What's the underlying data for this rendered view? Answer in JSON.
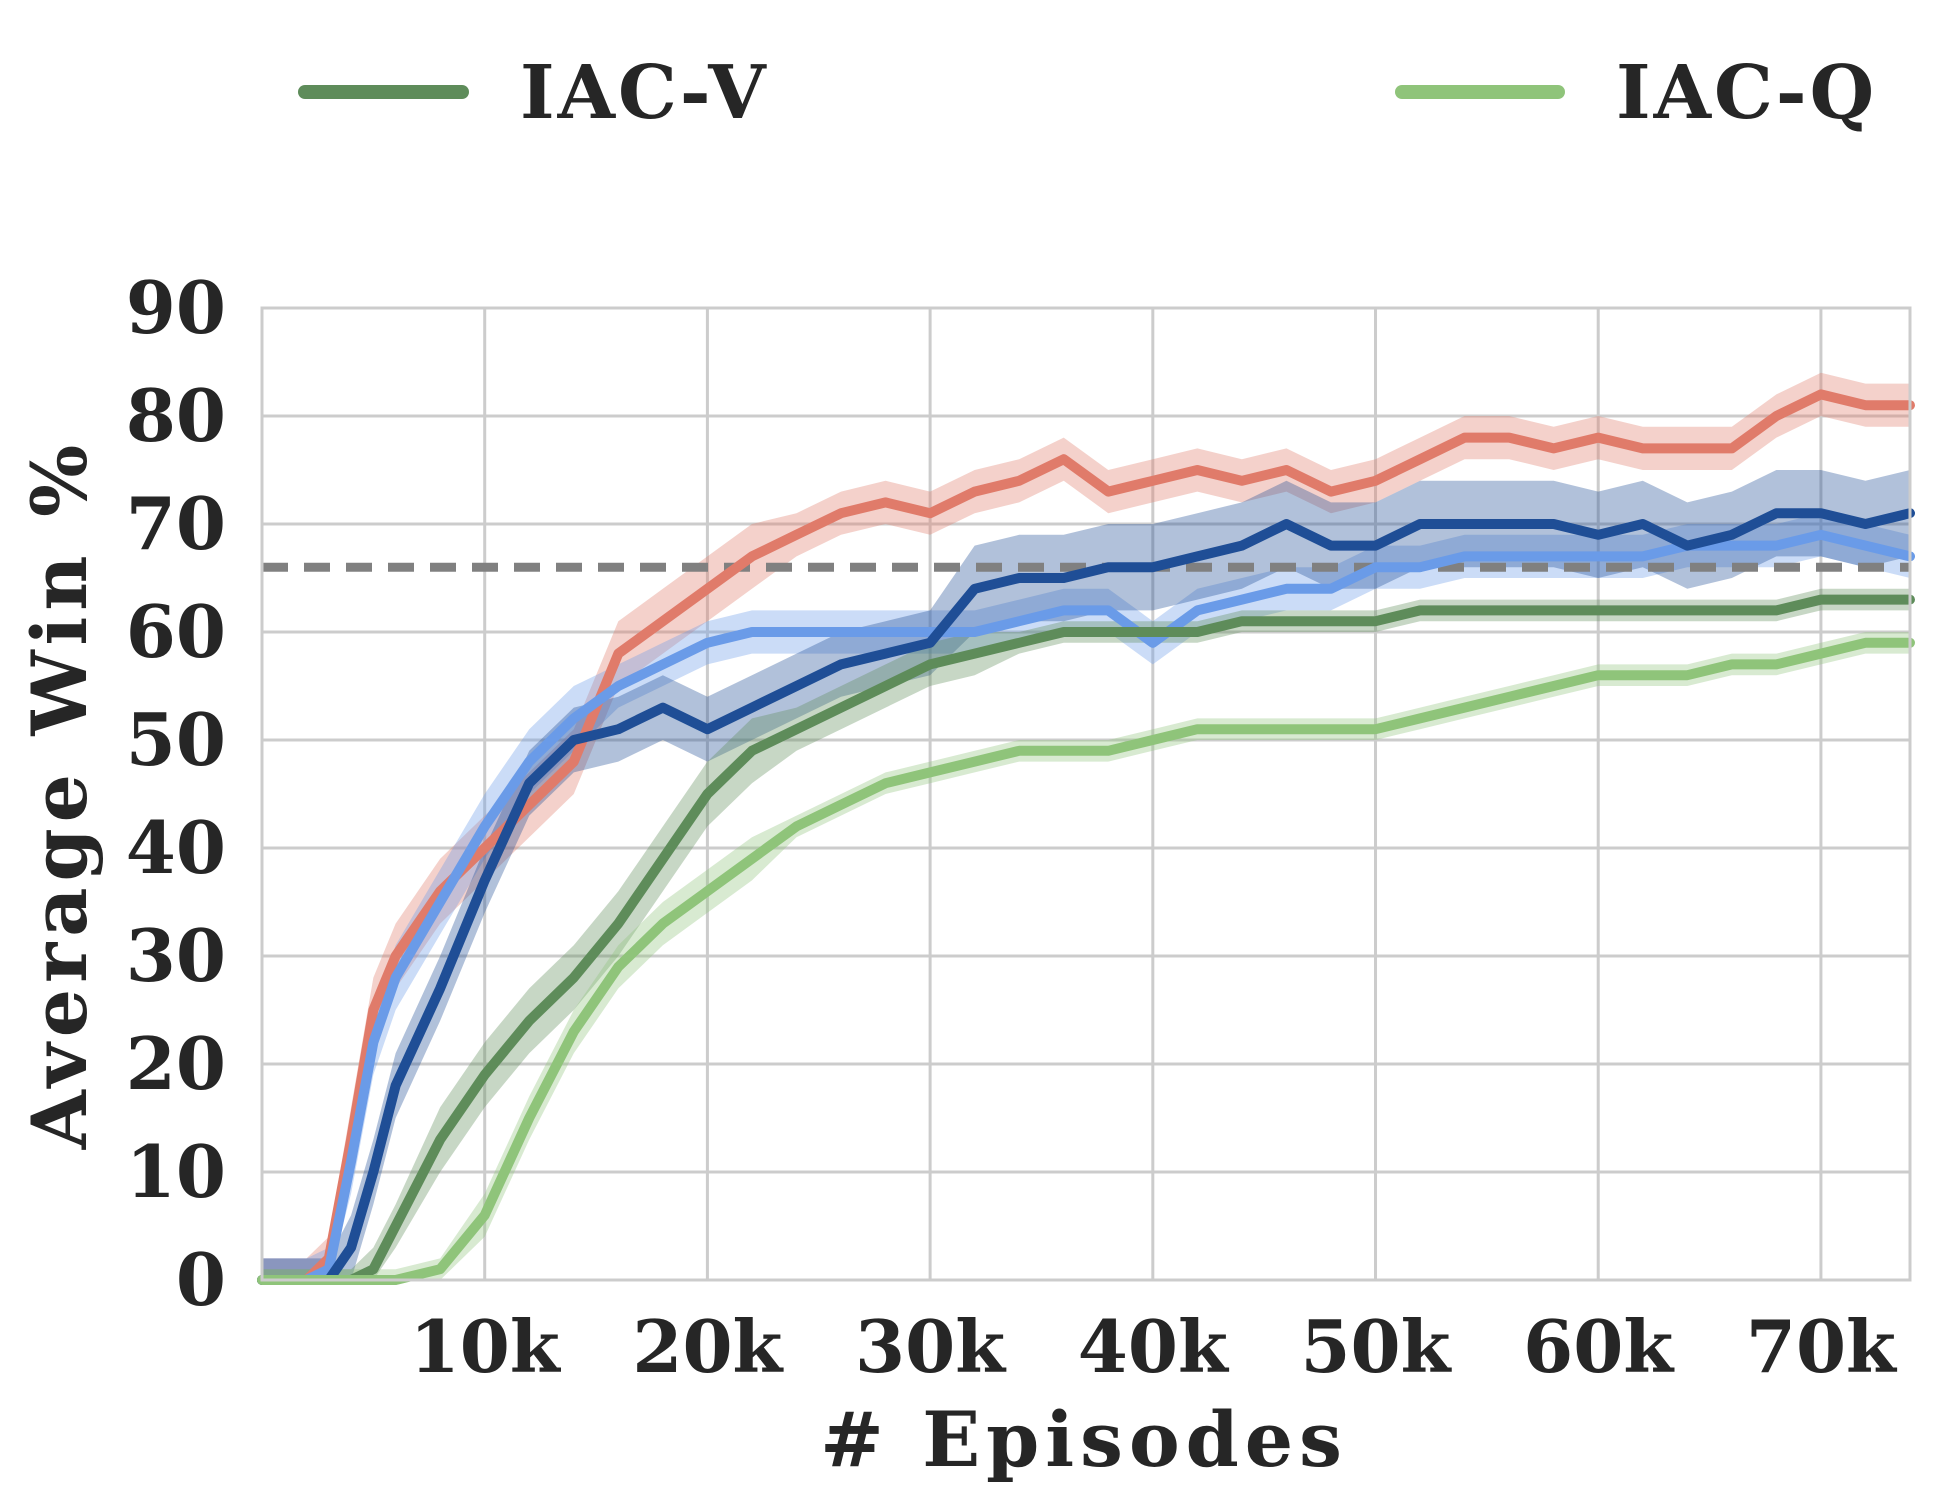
{
  "chart_data": {
    "type": "line",
    "title": "",
    "xlabel": "# Episodes",
    "ylabel": "Average Win %",
    "xlim": [
      0,
      74000
    ],
    "ylim": [
      0,
      90
    ],
    "grid": true,
    "legend_position": "top",
    "x_ticks": [
      {
        "value": 10000,
        "label": "10k"
      },
      {
        "value": 20000,
        "label": "20k"
      },
      {
        "value": 30000,
        "label": "30k"
      },
      {
        "value": 40000,
        "label": "40k"
      },
      {
        "value": 50000,
        "label": "50k"
      },
      {
        "value": 60000,
        "label": "60k"
      },
      {
        "value": 70000,
        "label": "70k"
      }
    ],
    "y_ticks": [
      {
        "value": 0,
        "label": "0"
      },
      {
        "value": 10,
        "label": "10"
      },
      {
        "value": 20,
        "label": "20"
      },
      {
        "value": 30,
        "label": "30"
      },
      {
        "value": 40,
        "label": "40"
      },
      {
        "value": 50,
        "label": "50"
      },
      {
        "value": 60,
        "label": "60"
      },
      {
        "value": 70,
        "label": "70"
      },
      {
        "value": 80,
        "label": "80"
      },
      {
        "value": 90,
        "label": "90"
      }
    ],
    "reference_line": {
      "y": 66,
      "color": "#808080",
      "style": "dashed"
    },
    "x": [
      0,
      2000,
      3000,
      4000,
      5000,
      6000,
      8000,
      10000,
      12000,
      14000,
      16000,
      18000,
      20000,
      22000,
      24000,
      26000,
      28000,
      30000,
      32000,
      34000,
      36000,
      38000,
      40000,
      42000,
      44000,
      46000,
      48000,
      50000,
      52000,
      54000,
      56000,
      58000,
      60000,
      62000,
      64000,
      66000,
      68000,
      70000,
      72000,
      74000
    ],
    "series": [
      {
        "name": "",
        "color": "#e07b6a",
        "values": [
          0,
          0,
          2,
          13,
          25,
          30,
          36,
          40,
          44,
          48,
          58,
          61,
          64,
          67,
          69,
          71,
          72,
          71,
          73,
          74,
          76,
          73,
          74,
          75,
          74,
          75,
          73,
          74,
          76,
          78,
          78,
          77,
          78,
          77,
          77,
          77,
          80,
          82,
          81,
          81
        ],
        "band": [
          2,
          2,
          2,
          3,
          3,
          3,
          3,
          3,
          3,
          3,
          3,
          3,
          3,
          3,
          2,
          2,
          2,
          2,
          2,
          2,
          2,
          2,
          2,
          2,
          2,
          2,
          2,
          2,
          2,
          2,
          2,
          2,
          2,
          2,
          2,
          2,
          2,
          2,
          2,
          2
        ]
      },
      {
        "name": "",
        "color": "#6a9be8",
        "values": [
          0,
          0,
          1,
          11,
          22,
          28,
          35,
          42,
          48,
          52,
          55,
          57,
          59,
          60,
          60,
          60,
          60,
          60,
          60,
          61,
          62,
          62,
          59,
          62,
          63,
          64,
          64,
          66,
          66,
          67,
          67,
          67,
          67,
          67,
          68,
          68,
          68,
          69,
          68,
          67
        ],
        "band": [
          2,
          2,
          2,
          3,
          3,
          3,
          3,
          3,
          3,
          3,
          2,
          2,
          2,
          2,
          2,
          2,
          2,
          2,
          2,
          2,
          2,
          2,
          2,
          2,
          2,
          2,
          2,
          2,
          2,
          2,
          2,
          2,
          2,
          2,
          2,
          2,
          2,
          2,
          2,
          2
        ]
      },
      {
        "name": "",
        "color": "#1f4e96",
        "values": [
          0,
          0,
          0,
          3,
          10,
          18,
          27,
          37,
          46,
          50,
          51,
          53,
          51,
          53,
          55,
          57,
          58,
          59,
          64,
          65,
          65,
          66,
          66,
          67,
          68,
          70,
          68,
          68,
          70,
          70,
          70,
          70,
          69,
          70,
          68,
          69,
          71,
          71,
          70,
          71
        ],
        "band": [
          2,
          2,
          2,
          3,
          3,
          3,
          3,
          3,
          3,
          3,
          3,
          3,
          3,
          3,
          3,
          3,
          3,
          3,
          4,
          4,
          4,
          4,
          4,
          4,
          4,
          4,
          4,
          4,
          4,
          4,
          4,
          4,
          4,
          4,
          4,
          4,
          4,
          4,
          4,
          4
        ]
      },
      {
        "name": "IAC-V",
        "color": "#5e8c5a",
        "values": [
          0,
          0,
          0,
          0,
          1,
          5,
          13,
          19,
          24,
          28,
          33,
          39,
          45,
          49,
          51,
          53,
          55,
          57,
          58,
          59,
          60,
          60,
          60,
          60,
          61,
          61,
          61,
          61,
          62,
          62,
          62,
          62,
          62,
          62,
          62,
          62,
          62,
          63,
          63,
          63
        ],
        "band": [
          1,
          1,
          1,
          1,
          2,
          2,
          3,
          3,
          3,
          3,
          3,
          3,
          3,
          3,
          2,
          2,
          2,
          2,
          2,
          1,
          1,
          1,
          1,
          1,
          1,
          1,
          1,
          1,
          1,
          1,
          1,
          1,
          1,
          1,
          1,
          1,
          1,
          1,
          1,
          1
        ]
      },
      {
        "name": "IAC-Q",
        "color": "#8fc47a",
        "values": [
          0,
          0,
          0,
          0,
          0,
          0,
          1,
          6,
          15,
          23,
          29,
          33,
          36,
          39,
          42,
          44,
          46,
          47,
          48,
          49,
          49,
          49,
          50,
          51,
          51,
          51,
          51,
          51,
          52,
          53,
          54,
          55,
          56,
          56,
          56,
          57,
          57,
          58,
          59,
          59
        ],
        "band": [
          1,
          1,
          1,
          1,
          1,
          1,
          1,
          2,
          2,
          2,
          2,
          2,
          2,
          2,
          1,
          1,
          1,
          1,
          1,
          1,
          1,
          1,
          1,
          1,
          1,
          1,
          1,
          1,
          1,
          1,
          1,
          1,
          1,
          1,
          1,
          1,
          1,
          1,
          1,
          1
        ]
      }
    ]
  },
  "legend": {
    "items": [
      {
        "label": "IAC-V",
        "color": "#5e8c5a"
      },
      {
        "label": "IAC-Q",
        "color": "#8fc47a"
      }
    ]
  }
}
